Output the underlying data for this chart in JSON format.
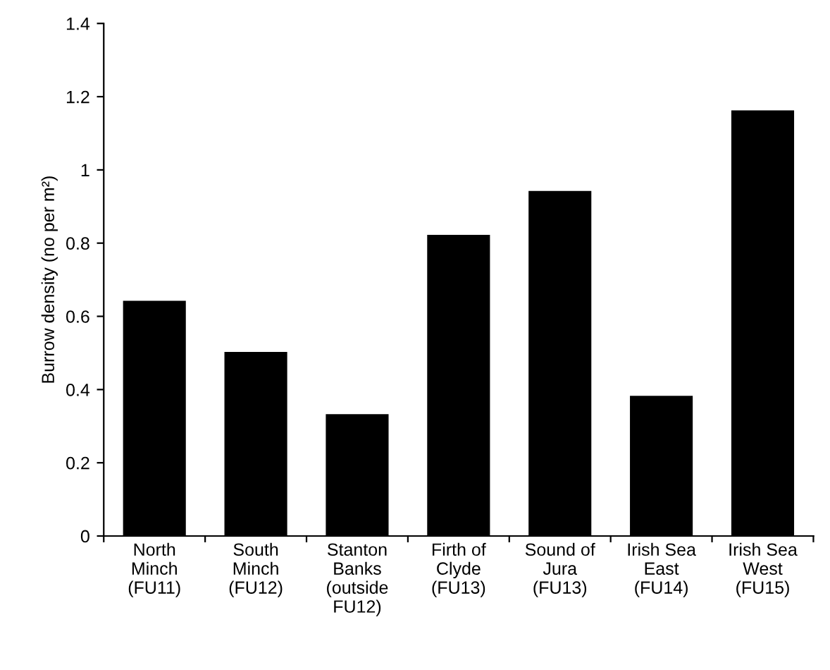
{
  "chart_data": {
    "type": "bar",
    "ylabel": "Burrow density (no per m²)",
    "categories": [
      "North\nMinch\n(FU11)",
      "South\nMinch\n(FU12)",
      "Stanton\nBanks\n(outside\nFU12)",
      "Firth of\nClyde\n(FU13)",
      "Sound of\nJura\n(FU13)",
      "Irish Sea\nEast\n(FU14)",
      "Irish Sea\nWest\n(FU15)"
    ],
    "values": [
      0.64,
      0.5,
      0.33,
      0.82,
      0.94,
      0.38,
      1.16
    ],
    "color": "#000000",
    "ylim": [
      0,
      1.4
    ],
    "yticks": [
      0,
      0.2,
      0.4,
      0.6,
      0.8,
      1,
      1.2,
      1.4
    ],
    "grid": false
  }
}
